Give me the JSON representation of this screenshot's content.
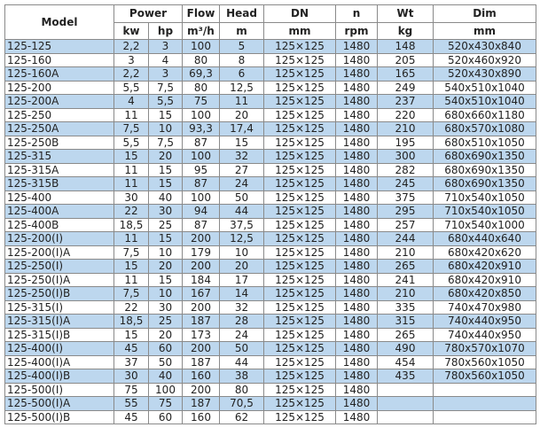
{
  "header": {
    "model": "Model",
    "power": "Power",
    "flow": "Flow",
    "head": "Head",
    "dn": "DN",
    "n": "n",
    "wt": "Wt",
    "dim": "Dim",
    "units": [
      "kw",
      "hp",
      "m³/h",
      "m",
      "mm",
      "rpm",
      "kg",
      "mm"
    ]
  },
  "row_color_alt": "#bdd7ee",
  "rows": [
    [
      "125-125",
      "2,2",
      "3",
      "100",
      "5",
      "125×125",
      "1480",
      "148",
      "520x430x840"
    ],
    [
      "125-160",
      "3",
      "4",
      "80",
      "8",
      "125×125",
      "1480",
      "205",
      "520x460x920"
    ],
    [
      "125-160A",
      "2,2",
      "3",
      "69,3",
      "6",
      "125×125",
      "1480",
      "165",
      "520x430x890"
    ],
    [
      "125-200",
      "5,5",
      "7,5",
      "80",
      "12,5",
      "125×125",
      "1480",
      "249",
      "540x510x1040"
    ],
    [
      "125-200A",
      "4",
      "5,5",
      "75",
      "11",
      "125×125",
      "1480",
      "237",
      "540x510x1040"
    ],
    [
      "125-250",
      "11",
      "15",
      "100",
      "20",
      "125×125",
      "1480",
      "220",
      "680x660x1180"
    ],
    [
      "125-250A",
      "7,5",
      "10",
      "93,3",
      "17,4",
      "125×125",
      "1480",
      "210",
      "680x570x1080"
    ],
    [
      "125-250B",
      "5,5",
      "7,5",
      "87",
      "15",
      "125×125",
      "1480",
      "195",
      "680x510x1050"
    ],
    [
      "125-315",
      "15",
      "20",
      "100",
      "32",
      "125×125",
      "1480",
      "300",
      "680x690x1350"
    ],
    [
      "125-315A",
      "11",
      "15",
      "95",
      "27",
      "125×125",
      "1480",
      "282",
      "680x690x1350"
    ],
    [
      "125-315B",
      "11",
      "15",
      "87",
      "24",
      "125×125",
      "1480",
      "245",
      "680x690x1350"
    ],
    [
      "125-400",
      "30",
      "40",
      "100",
      "50",
      "125×125",
      "1480",
      "375",
      "710x540x1050"
    ],
    [
      "125-400A",
      "22",
      "30",
      "94",
      "44",
      "125×125",
      "1480",
      "295",
      "710x540x1050"
    ],
    [
      "125-400B",
      "18,5",
      "25",
      "87",
      "37,5",
      "125×125",
      "1480",
      "257",
      "710x540x1000"
    ],
    [
      "125-200(I)",
      "11",
      "15",
      "200",
      "12,5",
      "125×125",
      "1480",
      "244",
      "680x440x640"
    ],
    [
      "125-200(I)A",
      "7,5",
      "10",
      "179",
      "10",
      "125×125",
      "1480",
      "210",
      "680x420x620"
    ],
    [
      "125-250(I)",
      "15",
      "20",
      "200",
      "20",
      "125×125",
      "1480",
      "265",
      "680x420x910"
    ],
    [
      "125-250(I)A",
      "11",
      "15",
      "184",
      "17",
      "125×125",
      "1480",
      "241",
      "680x420x910"
    ],
    [
      "125-250(I)B",
      "7,5",
      "10",
      "167",
      "14",
      "125×125",
      "1480",
      "210",
      "680x420x850"
    ],
    [
      "125-315(I)",
      "22",
      "30",
      "200",
      "32",
      "125×125",
      "1480",
      "335",
      "740x470x980"
    ],
    [
      "125-315(I)A",
      "18,5",
      "25",
      "187",
      "28",
      "125×125",
      "1480",
      "315",
      "740x440x950"
    ],
    [
      "125-315(I)B",
      "15",
      "20",
      "173",
      "24",
      "125×125",
      "1480",
      "265",
      "740x440x950"
    ],
    [
      "125-400(I)",
      "45",
      "60",
      "200",
      "50",
      "125×125",
      "1480",
      "490",
      "780x570x1070"
    ],
    [
      "125-400(I)A",
      "37",
      "50",
      "187",
      "44",
      "125×125",
      "1480",
      "454",
      "780x560x1050"
    ],
    [
      "125-400(I)B",
      "30",
      "40",
      "160",
      "38",
      "125×125",
      "1480",
      "435",
      "780x560x1050"
    ],
    [
      "125-500(I)",
      "75",
      "100",
      "200",
      "80",
      "125×125",
      "1480",
      "",
      ""
    ],
    [
      "125-500(I)A",
      "55",
      "75",
      "187",
      "70,5",
      "125×125",
      "1480",
      "",
      ""
    ],
    [
      "125-500(I)B",
      "45",
      "60",
      "160",
      "62",
      "125×125",
      "1480",
      "",
      ""
    ]
  ]
}
